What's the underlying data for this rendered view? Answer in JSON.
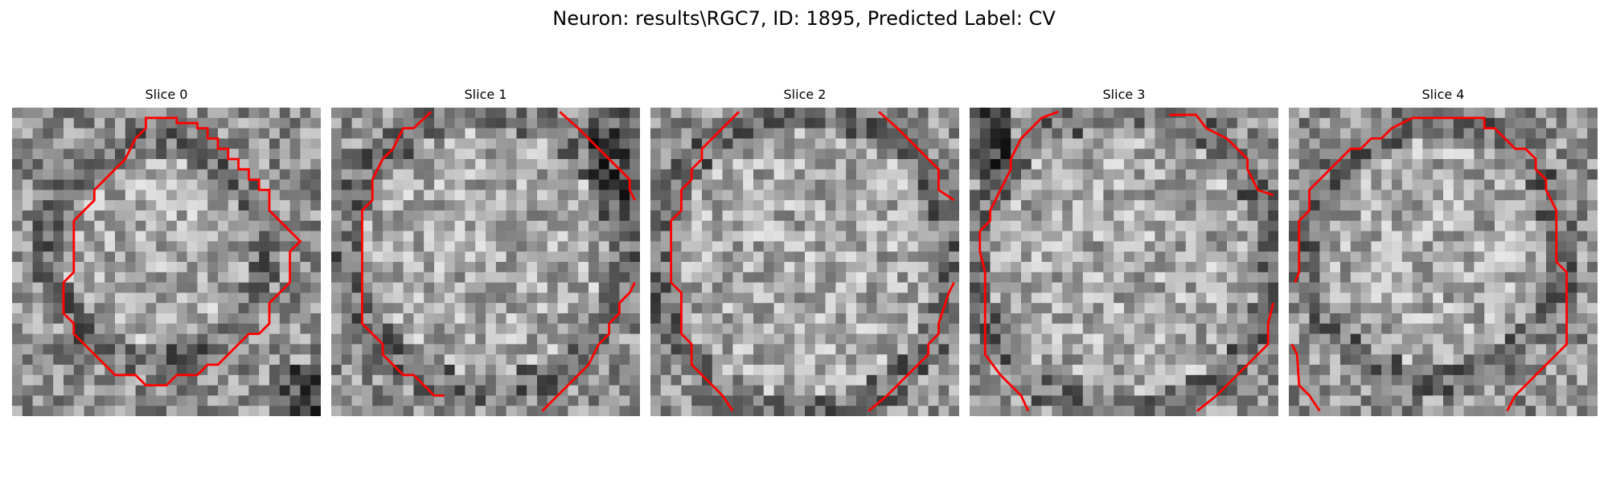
{
  "figure": {
    "title": "Neuron: results\\RGC7, ID: 1895, Predicted Label: CV"
  },
  "panels": [
    {
      "title": "Slice 0"
    },
    {
      "title": "Slice 1"
    },
    {
      "title": "Slice 2"
    },
    {
      "title": "Slice 3"
    },
    {
      "title": "Slice 4"
    }
  ],
  "colors": {
    "contour": "#ff0000",
    "background": "#ffffff",
    "image_colormap": "grayscale"
  }
}
